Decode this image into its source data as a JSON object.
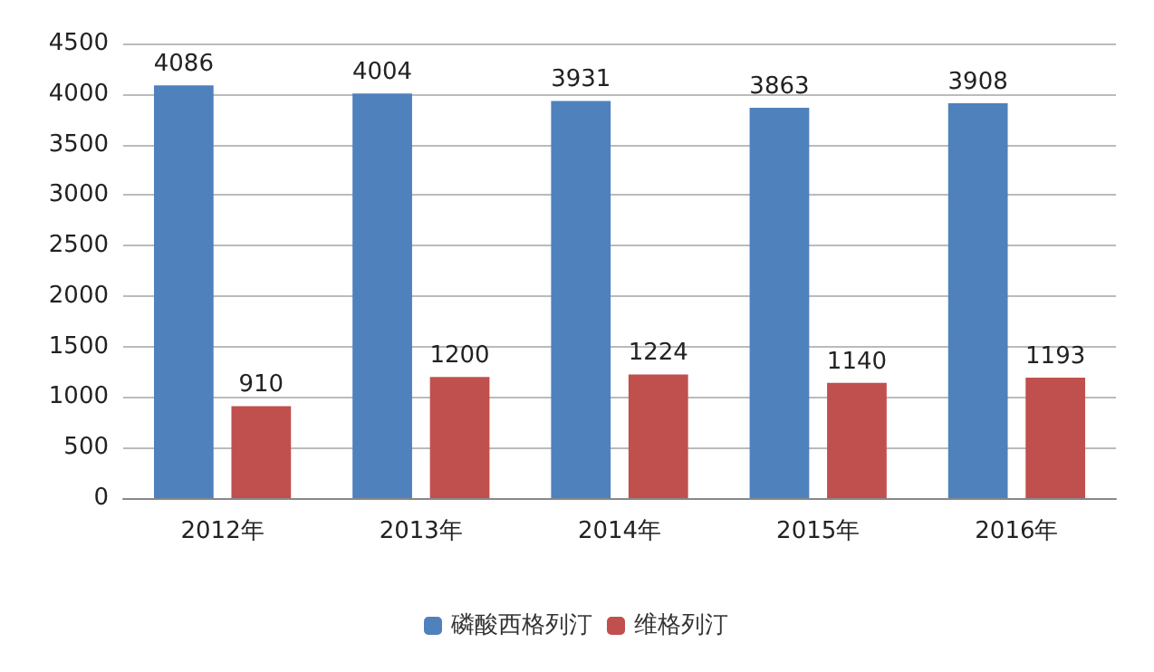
{
  "chart_data": {
    "type": "bar",
    "categories": [
      "2012年",
      "2013年",
      "2014年",
      "2015年",
      "2016年"
    ],
    "series": [
      {
        "name": "磷酸西格列汀",
        "color": "#4f81bd",
        "values": [
          4086,
          4004,
          3931,
          3863,
          3908
        ]
      },
      {
        "name": "维格列汀",
        "color": "#c0504d",
        "values": [
          910,
          1200,
          1224,
          1140,
          1193
        ]
      }
    ],
    "ylim": [
      0,
      4500
    ],
    "yticks": [
      0,
      500,
      1000,
      1500,
      2000,
      2500,
      3000,
      3500,
      4000,
      4500
    ],
    "grid": "y",
    "legend": "bottom",
    "data_labels": true
  }
}
